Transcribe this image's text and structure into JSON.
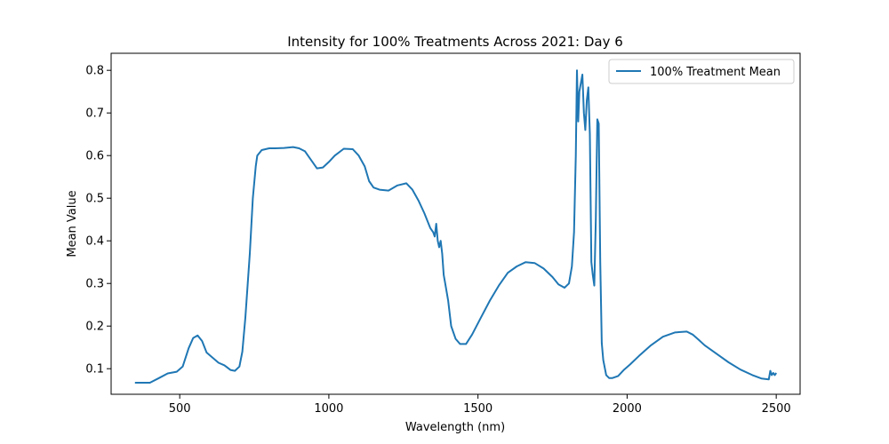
{
  "chart_data": {
    "type": "line",
    "title": "Intensity for 100% Treatments Across 2021: Day 6",
    "xlabel": "Wavelength (nm)",
    "ylabel": "Mean Value",
    "xlim": [
      270,
      2580
    ],
    "ylim": [
      0.04,
      0.84
    ],
    "x_ticks": [
      500,
      1000,
      1500,
      2000,
      2500
    ],
    "x_tick_labels": [
      "500",
      "1000",
      "1500",
      "2000",
      "2500"
    ],
    "y_ticks": [
      0.1,
      0.2,
      0.3,
      0.4,
      0.5,
      0.6,
      0.7,
      0.8
    ],
    "y_tick_labels": [
      "0.1",
      "0.2",
      "0.3",
      "0.4",
      "0.5",
      "0.6",
      "0.7",
      "0.8"
    ],
    "grid": false,
    "legend_position": "top-right",
    "series_color": "#1f77b4",
    "series": [
      {
        "name": "100% Treatment Mean",
        "x": [
          350,
          400,
          430,
          460,
          490,
          510,
          530,
          545,
          560,
          575,
          590,
          610,
          630,
          650,
          670,
          685,
          700,
          710,
          720,
          735,
          745,
          755,
          760,
          775,
          800,
          820,
          850,
          880,
          900,
          920,
          930,
          945,
          960,
          980,
          1000,
          1020,
          1050,
          1080,
          1100,
          1120,
          1135,
          1150,
          1170,
          1200,
          1230,
          1260,
          1280,
          1300,
          1320,
          1340,
          1350,
          1355,
          1360,
          1365,
          1370,
          1375,
          1380,
          1385,
          1390,
          1400,
          1410,
          1425,
          1440,
          1460,
          1480,
          1510,
          1540,
          1570,
          1600,
          1630,
          1660,
          1690,
          1720,
          1750,
          1770,
          1790,
          1805,
          1815,
          1822,
          1828,
          1832,
          1836,
          1840,
          1845,
          1850,
          1855,
          1860,
          1865,
          1870,
          1875,
          1880,
          1885,
          1890,
          1895,
          1900,
          1905,
          1910,
          1915,
          1920,
          1930,
          1940,
          1950,
          1970,
          1990,
          2010,
          2040,
          2080,
          2120,
          2160,
          2200,
          2220,
          2240,
          2260,
          2300,
          2340,
          2380,
          2420,
          2450,
          2475,
          2480,
          2485,
          2490,
          2495,
          2500
        ],
        "y": [
          0.067,
          0.067,
          0.078,
          0.089,
          0.093,
          0.105,
          0.148,
          0.172,
          0.178,
          0.165,
          0.138,
          0.126,
          0.114,
          0.108,
          0.097,
          0.095,
          0.105,
          0.14,
          0.22,
          0.37,
          0.5,
          0.575,
          0.6,
          0.613,
          0.617,
          0.617,
          0.618,
          0.62,
          0.617,
          0.61,
          0.6,
          0.585,
          0.57,
          0.572,
          0.585,
          0.6,
          0.616,
          0.615,
          0.6,
          0.575,
          0.54,
          0.525,
          0.52,
          0.518,
          0.53,
          0.535,
          0.52,
          0.495,
          0.465,
          0.43,
          0.42,
          0.41,
          0.44,
          0.4,
          0.385,
          0.4,
          0.37,
          0.32,
          0.3,
          0.26,
          0.2,
          0.17,
          0.158,
          0.158,
          0.18,
          0.22,
          0.26,
          0.295,
          0.325,
          0.34,
          0.35,
          0.348,
          0.335,
          0.315,
          0.298,
          0.29,
          0.3,
          0.34,
          0.42,
          0.6,
          0.8,
          0.68,
          0.75,
          0.77,
          0.79,
          0.7,
          0.66,
          0.73,
          0.76,
          0.65,
          0.35,
          0.32,
          0.295,
          0.45,
          0.685,
          0.675,
          0.35,
          0.16,
          0.12,
          0.085,
          0.078,
          0.078,
          0.083,
          0.098,
          0.11,
          0.13,
          0.155,
          0.175,
          0.185,
          0.187,
          0.18,
          0.168,
          0.155,
          0.135,
          0.115,
          0.098,
          0.085,
          0.077,
          0.075,
          0.095,
          0.085,
          0.09,
          0.085,
          0.09
        ]
      }
    ]
  }
}
